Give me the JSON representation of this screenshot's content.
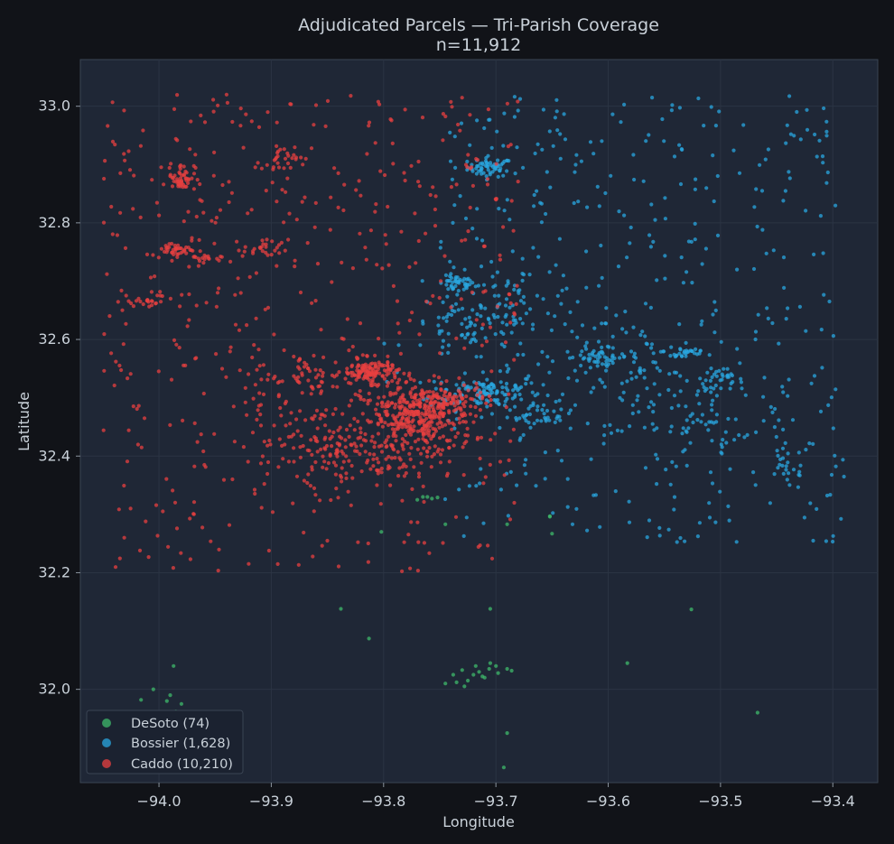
{
  "chart_data": {
    "type": "scatter",
    "title": "Adjudicated Parcels — Tri-Parish Coverage",
    "subtitle": "n=11,912",
    "xlabel": "Longitude",
    "ylabel": "Latitude",
    "xlim": [
      -94.07,
      -93.36
    ],
    "ylim": [
      31.84,
      33.08
    ],
    "x_ticks": [
      "−94.0",
      "−93.9",
      "−93.8",
      "−93.7",
      "−93.6",
      "−93.5",
      "−93.4"
    ],
    "y_ticks": [
      "32.0",
      "32.2",
      "32.4",
      "32.6",
      "32.8",
      "33.0"
    ],
    "grid": true,
    "legend_position": "lower-left",
    "series": [
      {
        "name": "DeSoto (74)",
        "color": "#3fb96b",
        "points": [
          [
            -93.765,
            32.33
          ],
          [
            -93.757,
            32.327
          ],
          [
            -93.752,
            32.329
          ],
          [
            -93.77,
            32.325
          ],
          [
            -93.761,
            32.33
          ],
          [
            -93.802,
            32.27
          ],
          [
            -93.745,
            32.283
          ],
          [
            -93.69,
            32.283
          ],
          [
            -93.652,
            32.297
          ],
          [
            -93.65,
            32.267
          ],
          [
            -93.652,
            32.296
          ],
          [
            -93.838,
            32.138
          ],
          [
            -93.813,
            32.087
          ],
          [
            -93.705,
            32.138
          ],
          [
            -93.583,
            32.045
          ],
          [
            -93.526,
            32.137
          ],
          [
            -93.467,
            31.96
          ],
          [
            -93.69,
            31.925
          ],
          [
            -93.693,
            31.866
          ],
          [
            -93.987,
            32.04
          ],
          [
            -94.005,
            32.0
          ],
          [
            -94.016,
            31.982
          ],
          [
            -93.993,
            31.98
          ],
          [
            -93.985,
            31.962
          ],
          [
            -93.98,
            31.975
          ],
          [
            -93.99,
            31.99
          ],
          [
            -93.73,
            32.033
          ],
          [
            -93.72,
            32.025
          ],
          [
            -93.71,
            32.02
          ],
          [
            -93.7,
            32.04
          ],
          [
            -93.69,
            32.035
          ],
          [
            -93.705,
            32.045
          ],
          [
            -93.715,
            32.03
          ],
          [
            -93.725,
            32.015
          ],
          [
            -93.735,
            32.012
          ],
          [
            -93.745,
            32.01
          ],
          [
            -93.728,
            32.005
          ],
          [
            -93.686,
            32.032
          ],
          [
            -93.698,
            32.028
          ],
          [
            -93.712,
            32.022
          ],
          [
            -93.738,
            32.025
          ],
          [
            -93.718,
            32.04
          ],
          [
            -93.706,
            32.035
          ]
        ]
      },
      {
        "name": "Bossier (1,628)",
        "color": "#2aa7e0",
        "clusters": [
          {
            "c": [
              -93.705,
              32.895
            ],
            "s": [
              0.01,
              0.008
            ],
            "n": 60
          },
          {
            "c": [
              -93.735,
              32.695
            ],
            "s": [
              0.008,
              0.007
            ],
            "n": 40
          },
          {
            "c": [
              -93.71,
              32.51
            ],
            "s": [
              0.025,
              0.015
            ],
            "n": 130
          },
          {
            "c": [
              -93.66,
              32.47
            ],
            "s": [
              0.015,
              0.01
            ],
            "n": 40
          },
          {
            "c": [
              -93.61,
              32.57
            ],
            "s": [
              0.015,
              0.007
            ],
            "n": 40
          },
          {
            "c": [
              -93.5,
              32.53
            ],
            "s": [
              0.01,
              0.01
            ],
            "n": 30
          },
          {
            "c": [
              -93.53,
              32.58
            ],
            "s": [
              0.01,
              0.008
            ],
            "n": 25
          },
          {
            "c": [
              -93.44,
              32.38
            ],
            "s": [
              0.01,
              0.02
            ],
            "n": 25
          },
          {
            "c": [
              -93.72,
              32.62
            ],
            "s": [
              0.03,
              0.03
            ],
            "n": 70
          },
          {
            "c": [
              -93.68,
              32.67
            ],
            "s": [
              0.03,
              0.03
            ],
            "n": 50
          },
          {
            "c": [
              -93.58,
              32.56
            ],
            "s": [
              0.03,
              0.03
            ],
            "n": 60
          },
          {
            "c": [
              -93.52,
              32.45
            ],
            "s": [
              0.04,
              0.04
            ],
            "n": 60
          }
        ],
        "scatter_region": [
          -93.75,
          -93.39,
          32.25,
          33.02
        ],
        "scatter_n": 420
      },
      {
        "name": "Caddo (10,210)",
        "color": "#e84040",
        "clusters": [
          {
            "c": [
              -93.77,
              32.46
            ],
            "s": [
              0.025,
              0.03
            ],
            "n": 320
          },
          {
            "c": [
              -93.81,
              32.545
            ],
            "s": [
              0.012,
              0.01
            ],
            "n": 120
          },
          {
            "c": [
              -93.75,
              32.49
            ],
            "s": [
              0.02,
              0.015
            ],
            "n": 120
          },
          {
            "c": [
              -93.98,
              32.88
            ],
            "s": [
              0.006,
              0.012
            ],
            "n": 50
          },
          {
            "c": [
              -93.985,
              32.755
            ],
            "s": [
              0.01,
              0.006
            ],
            "n": 35
          },
          {
            "c": [
              -93.965,
              32.735
            ],
            "s": [
              0.01,
              0.006
            ],
            "n": 20
          },
          {
            "c": [
              -94.015,
              32.665
            ],
            "s": [
              0.012,
              0.008
            ],
            "n": 25
          },
          {
            "c": [
              -93.893,
              32.905
            ],
            "s": [
              0.008,
              0.012
            ],
            "n": 25
          },
          {
            "c": [
              -93.905,
              32.755
            ],
            "s": [
              0.01,
              0.008
            ],
            "n": 25
          },
          {
            "c": [
              -93.86,
              32.43
            ],
            "s": [
              0.03,
              0.03
            ],
            "n": 80
          },
          {
            "c": [
              -93.82,
              32.4
            ],
            "s": [
              0.04,
              0.03
            ],
            "n": 80
          },
          {
            "c": [
              -93.86,
              32.53
            ],
            "s": [
              0.03,
              0.02
            ],
            "n": 60
          }
        ],
        "scatter_region": [
          -94.05,
          -93.68,
          32.2,
          33.02
        ],
        "scatter_n": 520
      }
    ]
  }
}
